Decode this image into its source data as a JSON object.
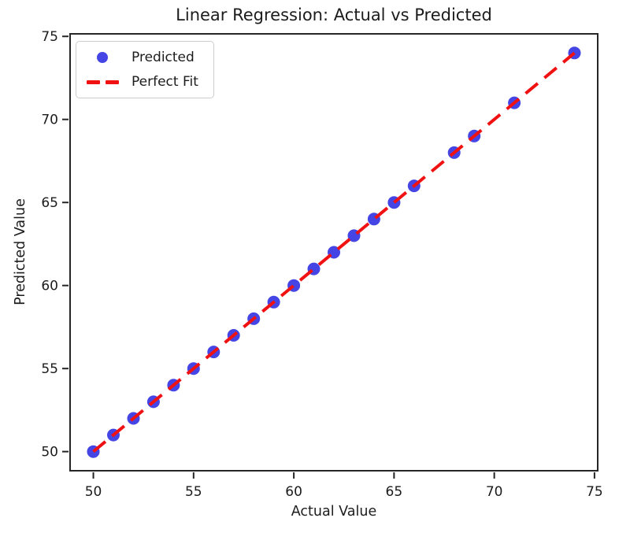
{
  "figure": {
    "title": "Linear Regression: Actual vs Predicted",
    "xlabel": "Actual Value",
    "ylabel": "Predicted Value"
  },
  "legend": {
    "position": "upper left",
    "items": [
      {
        "label": "Predicted",
        "marker": "circle"
      },
      {
        "label": "Perfect Fit",
        "marker": "dashed-line"
      }
    ]
  },
  "colors": {
    "scatter": "#2424e0",
    "line": "#f01212",
    "text": "#1c1c1c",
    "spine": "#262626",
    "legend_border": "#cccccc",
    "background": "#ffffff"
  },
  "chart_data": {
    "type": "scatter",
    "title": "Linear Regression: Actual vs Predicted",
    "xlabel": "Actual Value",
    "ylabel": "Predicted Value",
    "xlim": [
      48.8,
      75.2
    ],
    "ylim": [
      48.8,
      75.2
    ],
    "xticks": [
      50,
      55,
      60,
      65,
      70,
      75
    ],
    "yticks": [
      50,
      55,
      60,
      65,
      70,
      75
    ],
    "grid": false,
    "legend_position": "upper left",
    "series": [
      {
        "name": "Predicted",
        "type": "scatter",
        "color": "#2424e0",
        "opacity": 0.85,
        "marker_radius": 8,
        "x": [
          50,
          51,
          52,
          53,
          54,
          55,
          56,
          57,
          58,
          59,
          60,
          61,
          62,
          63,
          64,
          65,
          66,
          68,
          69,
          71,
          74
        ],
        "y": [
          50,
          51,
          52,
          53,
          54,
          55,
          56,
          57,
          58,
          59,
          60,
          61,
          62,
          63,
          64,
          65,
          66,
          68,
          69,
          71,
          74
        ]
      },
      {
        "name": "Perfect Fit",
        "type": "line",
        "style": "dashed",
        "color": "#f01212",
        "width": 4,
        "dash": [
          20,
          11
        ],
        "x": [
          50,
          74
        ],
        "y": [
          50,
          74
        ]
      }
    ]
  }
}
